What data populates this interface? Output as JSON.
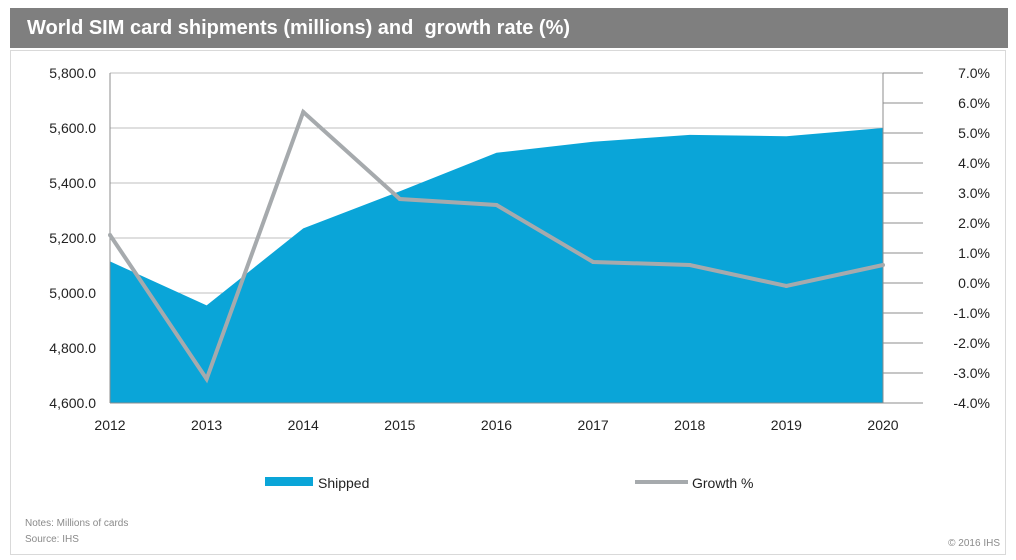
{
  "header": {
    "title": "World SIM card shipments (millions) and  growth rate (%)"
  },
  "footer": {
    "notes": "Notes: Millions of cards",
    "source": "Source: IHS",
    "copyright": "© 2016 IHS"
  },
  "colors": {
    "title_bar": "#7f7f7f",
    "shipped": "#0aa5d8",
    "growth": "#a6aaad",
    "grid": "#bfbfbf"
  },
  "chart_data": {
    "type": "area",
    "title": "World SIM card shipments (millions) and  growth rate (%)",
    "x": [
      "2012",
      "2013",
      "2014",
      "2015",
      "2016",
      "2017",
      "2018",
      "2019",
      "2020"
    ],
    "series": [
      {
        "name": "Shipped",
        "type": "area",
        "axis": "left",
        "values": [
          5115,
          4955,
          5235,
          5370,
          5510,
          5550,
          5575,
          5570,
          5600
        ]
      },
      {
        "name": "Growth %",
        "type": "line",
        "axis": "right",
        "values": [
          1.6,
          -3.2,
          5.7,
          2.8,
          2.6,
          0.7,
          0.6,
          -0.1,
          0.6
        ]
      }
    ],
    "left_axis": {
      "ylim": [
        4600,
        5800
      ],
      "ticks": [
        "4,600.0",
        "4,800.0",
        "5,000.0",
        "5,200.0",
        "5,400.0",
        "5,600.0",
        "5,800.0"
      ]
    },
    "right_axis": {
      "ylim": [
        -4.0,
        7.0
      ],
      "ticks": [
        "-4.0%",
        "-3.0%",
        "-2.0%",
        "-1.0%",
        "0.0%",
        "1.0%",
        "2.0%",
        "3.0%",
        "4.0%",
        "5.0%",
        "6.0%",
        "7.0%"
      ]
    },
    "grid": true,
    "legend_position": "bottom"
  }
}
